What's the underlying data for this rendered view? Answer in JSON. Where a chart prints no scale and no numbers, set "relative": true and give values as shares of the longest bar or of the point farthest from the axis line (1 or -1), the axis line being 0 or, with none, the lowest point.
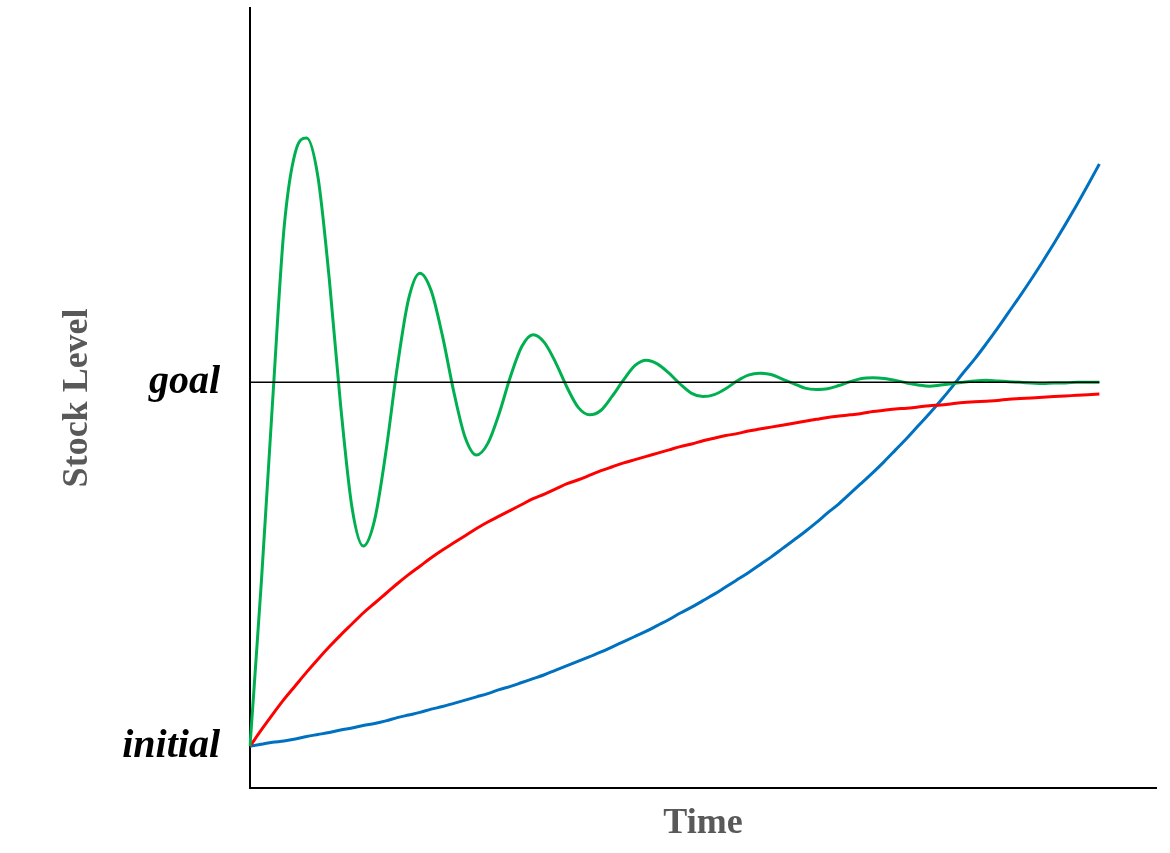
{
  "chart_data": {
    "type": "line",
    "xlabel": "Time",
    "ylabel": "Stock Level",
    "relative": true,
    "categories": [
      null,
      null,
      null,
      null,
      null,
      null,
      null,
      null,
      null,
      null,
      null,
      null,
      null,
      null,
      null,
      null,
      null,
      null,
      null,
      null,
      null,
      null,
      null,
      null,
      null,
      null,
      null,
      null,
      null,
      null,
      null,
      null,
      null,
      null,
      null,
      null,
      null,
      null,
      null,
      null,
      null,
      null,
      null,
      null,
      null,
      null,
      null,
      null,
      null,
      null,
      null,
      null,
      null,
      null,
      null,
      null,
      null,
      null,
      null,
      null,
      null,
      null,
      null,
      null,
      null,
      null,
      null,
      null,
      null,
      null,
      null,
      null,
      null,
      null,
      null,
      null,
      null,
      null,
      null,
      null,
      null
    ],
    "series": [
      {
        "color": "#00b050",
        "values": [
          0.064,
          0.316,
          0.596,
          0.86,
          0.978,
          1.0,
          0.94,
          0.783,
          0.589,
          0.432,
          0.372,
          0.412,
          0.517,
          0.647,
          0.752,
          0.792,
          0.765,
          0.695,
          0.609,
          0.539,
          0.512,
          0.53,
          0.576,
          0.633,
          0.679,
          0.697,
          0.685,
          0.654,
          0.616,
          0.585,
          0.574,
          0.581,
          0.603,
          0.628,
          0.65,
          0.658,
          0.652,
          0.638,
          0.621,
          0.607,
          0.602,
          0.605,
          0.614,
          0.626,
          0.635,
          0.638,
          0.636,
          0.629,
          0.622,
          0.615,
          0.613,
          0.614,
          0.619,
          0.625,
          0.63,
          0.631,
          0.63,
          0.627,
          0.623,
          0.62,
          0.618,
          0.62,
          0.622,
          0.624,
          0.626,
          0.627,
          0.626,
          0.625,
          0.624,
          0.623,
          0.622,
          0.623,
          0.623,
          0.624,
          0.624,
          0.624,
          null,
          null,
          null,
          null,
          null
        ]
      },
      {
        "color": "#ff0000",
        "values": [
          0.064,
          0.089,
          0.113,
          0.136,
          0.157,
          0.178,
          0.198,
          0.217,
          0.235,
          0.252,
          0.269,
          0.284,
          0.299,
          0.314,
          0.328,
          0.341,
          0.354,
          0.366,
          0.377,
          0.388,
          0.399,
          0.409,
          0.418,
          0.427,
          0.436,
          0.445,
          0.452,
          0.46,
          0.468,
          0.474,
          0.481,
          0.488,
          0.494,
          0.5,
          0.505,
          0.51,
          0.515,
          0.52,
          0.525,
          0.529,
          0.534,
          0.538,
          0.542,
          0.545,
          0.549,
          0.552,
          0.555,
          0.558,
          0.561,
          0.564,
          0.567,
          0.57,
          0.572,
          0.574,
          0.576,
          0.579,
          0.581,
          0.583,
          0.584,
          0.586,
          0.588,
          0.589,
          0.591,
          0.593,
          0.594,
          0.595,
          0.596,
          0.598,
          0.599,
          0.6,
          0.601,
          0.602,
          0.603,
          0.604,
          0.605,
          0.606,
          null,
          null,
          null,
          null,
          null
        ]
      },
      {
        "color": "#0070c0",
        "values": [
          0.064,
          0.067,
          0.07,
          0.072,
          0.075,
          0.079,
          0.082,
          0.085,
          0.089,
          0.092,
          0.096,
          0.099,
          0.103,
          0.108,
          0.112,
          0.116,
          0.121,
          0.125,
          0.13,
          0.135,
          0.14,
          0.145,
          0.151,
          0.156,
          0.162,
          0.168,
          0.174,
          0.181,
          0.188,
          0.195,
          0.202,
          0.209,
          0.217,
          0.225,
          0.233,
          0.241,
          0.25,
          0.259,
          0.269,
          0.278,
          0.288,
          0.298,
          0.309,
          0.32,
          0.331,
          0.343,
          0.355,
          0.368,
          0.381,
          0.394,
          0.408,
          0.423,
          0.437,
          0.453,
          0.469,
          0.485,
          0.502,
          0.52,
          0.538,
          0.557,
          0.576,
          0.596,
          0.617,
          0.639,
          0.66,
          0.683,
          0.707,
          0.732,
          0.757,
          0.783,
          0.81,
          0.838,
          0.867,
          0.897,
          0.928,
          0.96,
          null,
          null,
          null,
          null,
          null
        ]
      }
    ],
    "ref_lines": [
      {
        "axis": "y",
        "value": 0.624,
        "label": "goal",
        "color": "#000000"
      }
    ],
    "annotations": [
      "initial"
    ],
    "grid": false,
    "legend": false,
    "marker": "none",
    "line_style": "solid"
  }
}
